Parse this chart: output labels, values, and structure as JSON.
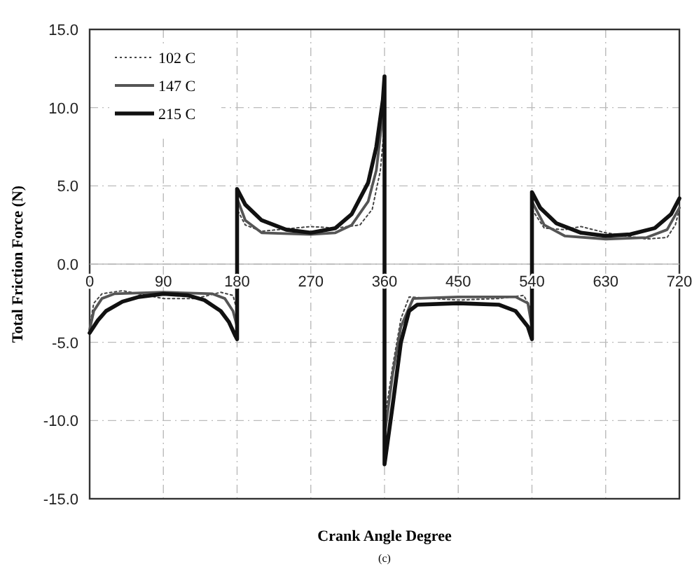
{
  "chart_data": {
    "type": "line",
    "xlabel": "Crank Angle Degree",
    "ylabel": "Total Friction Force (N)",
    "annotations": [
      "(c)"
    ],
    "xlim": [
      0,
      720
    ],
    "ylim": [
      -15,
      15
    ],
    "xticks": [
      0,
      90,
      180,
      270,
      360,
      450,
      540,
      630,
      720
    ],
    "yticks": [
      {
        "value": -15,
        "label": "-15.0"
      },
      {
        "value": -10,
        "label": "-10.0"
      },
      {
        "value": -5,
        "label": "-5.0"
      },
      {
        "value": 0,
        "label": "0.0"
      },
      {
        "value": 5,
        "label": "5.0"
      },
      {
        "value": 10,
        "label": "10.0"
      },
      {
        "value": 15,
        "label": "15.0"
      }
    ],
    "grid": true,
    "legend": "top left",
    "series": [
      {
        "name": "102 C",
        "color": "#444444",
        "line_style": "dotted",
        "x": [
          0,
          5,
          15,
          40,
          90,
          130,
          160,
          175,
          180,
          180,
          190,
          210,
          270,
          300,
          330,
          345,
          355,
          360,
          360,
          370,
          380,
          390,
          450,
          500,
          530,
          540,
          540,
          555,
          580,
          600,
          630,
          680,
          705,
          715,
          720
        ],
        "values": [
          -4.0,
          -2.5,
          -1.9,
          -1.7,
          -2.2,
          -2.2,
          -1.8,
          -2.0,
          -3.0,
          3.5,
          2.5,
          2.1,
          2.4,
          2.3,
          2.5,
          3.5,
          6.0,
          9.0,
          -10.0,
          -6.5,
          -3.5,
          -2.1,
          -2.3,
          -2.2,
          -2.0,
          -3.0,
          3.5,
          2.3,
          2.2,
          2.4,
          2.0,
          1.6,
          1.7,
          2.5,
          3.5
        ]
      },
      {
        "name": "147 C",
        "color": "#555555",
        "line_style": "solid",
        "x": [
          0,
          5,
          15,
          30,
          90,
          150,
          165,
          175,
          180,
          180,
          190,
          210,
          270,
          300,
          320,
          340,
          350,
          360,
          360,
          370,
          380,
          395,
          450,
          520,
          535,
          540,
          540,
          555,
          580,
          630,
          680,
          705,
          720
        ],
        "values": [
          -4.2,
          -3.0,
          -2.2,
          -1.9,
          -1.8,
          -1.9,
          -2.2,
          -3.0,
          -4.0,
          4.2,
          2.8,
          2.0,
          1.9,
          2.0,
          2.5,
          4.0,
          6.0,
          10.5,
          -11.0,
          -7.0,
          -4.0,
          -2.2,
          -2.1,
          -2.1,
          -2.5,
          -4.0,
          4.0,
          2.5,
          1.8,
          1.6,
          1.7,
          2.2,
          3.6
        ]
      },
      {
        "name": "215 C",
        "color": "#111111",
        "line_style": "solid",
        "x": [
          0,
          10,
          20,
          40,
          60,
          90,
          120,
          140,
          160,
          170,
          178,
          180,
          180,
          190,
          210,
          240,
          270,
          300,
          320,
          340,
          350,
          358,
          360,
          360,
          370,
          380,
          390,
          400,
          450,
          500,
          520,
          535,
          540,
          540,
          550,
          570,
          600,
          630,
          660,
          690,
          710,
          720
        ],
        "values": [
          -4.4,
          -3.6,
          -3.0,
          -2.4,
          -2.1,
          -1.9,
          -2.0,
          -2.3,
          -3.0,
          -3.7,
          -4.6,
          -4.8,
          4.8,
          3.8,
          2.8,
          2.2,
          2.0,
          2.3,
          3.2,
          5.2,
          7.5,
          10.5,
          12.0,
          -12.8,
          -9.0,
          -5.0,
          -3.0,
          -2.6,
          -2.5,
          -2.6,
          -3.0,
          -4.0,
          -4.8,
          4.6,
          3.6,
          2.6,
          2.0,
          1.8,
          1.9,
          2.3,
          3.2,
          4.2
        ]
      }
    ]
  }
}
